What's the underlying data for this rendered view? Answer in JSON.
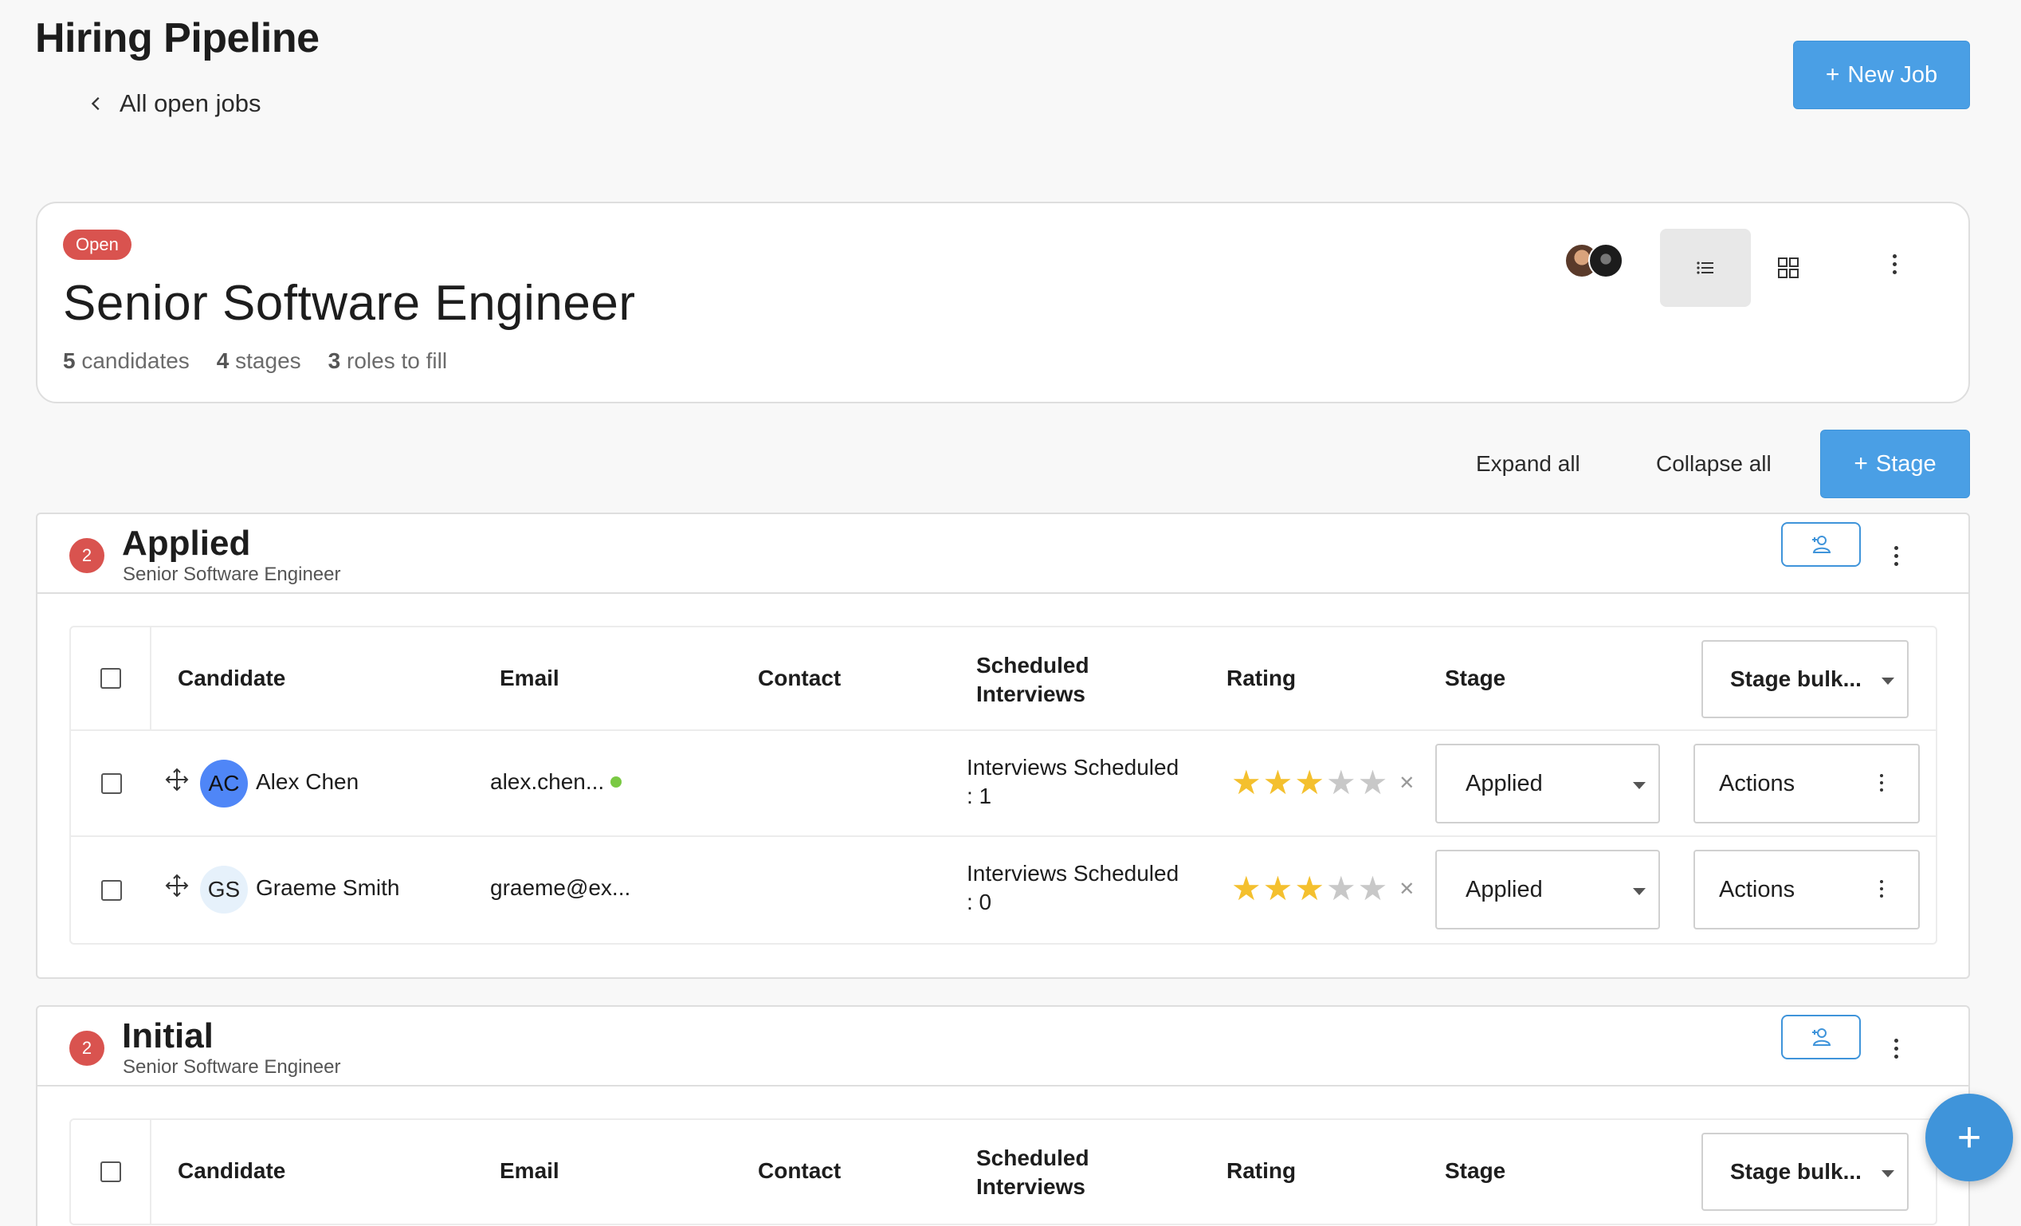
{
  "page": {
    "title": "Hiring Pipeline",
    "back_link": "All open jobs",
    "new_job_label": "New Job"
  },
  "job": {
    "status": "Open",
    "title": "Senior Software Engineer",
    "stats": {
      "candidates_count": "5",
      "candidates_label": "candidates",
      "stages_count": "4",
      "stages_label": "stages",
      "roles_count": "3",
      "roles_label": "roles to fill"
    },
    "view_mode": "list"
  },
  "toolbar": {
    "expand_all": "Expand all",
    "collapse_all": "Collapse all",
    "add_stage": "Stage"
  },
  "table_headers": {
    "candidate": "Candidate",
    "email": "Email",
    "contact": "Contact",
    "scheduled_interviews": "Scheduled Interviews",
    "rating": "Rating",
    "stage": "Stage",
    "stage_bulk": "Stage bulk..."
  },
  "stages": [
    {
      "count": "2",
      "name": "Applied",
      "subtitle": "Senior Software Engineer",
      "candidates": [
        {
          "initials": "AC",
          "name": "Alex Chen",
          "email": "alex.chen...",
          "online": true,
          "interviews_line1": "Interviews Scheduled",
          "interviews_line2": ": 1",
          "rating": 3,
          "rating_max": 5,
          "stage": "Applied",
          "actions": "Actions"
        },
        {
          "initials": "GS",
          "name": "Graeme Smith",
          "email": "graeme@ex...",
          "online": false,
          "interviews_line1": "Interviews Scheduled",
          "interviews_line2": ": 0",
          "rating": 3,
          "rating_max": 5,
          "stage": "Applied",
          "actions": "Actions"
        }
      ]
    },
    {
      "count": "2",
      "name": "Initial",
      "subtitle": "Senior Software Engineer"
    }
  ],
  "colors": {
    "primary": "#4a9fe5",
    "badge_red": "#d9534f",
    "star_on": "#f4c02e",
    "online_dot": "#7ac943"
  }
}
